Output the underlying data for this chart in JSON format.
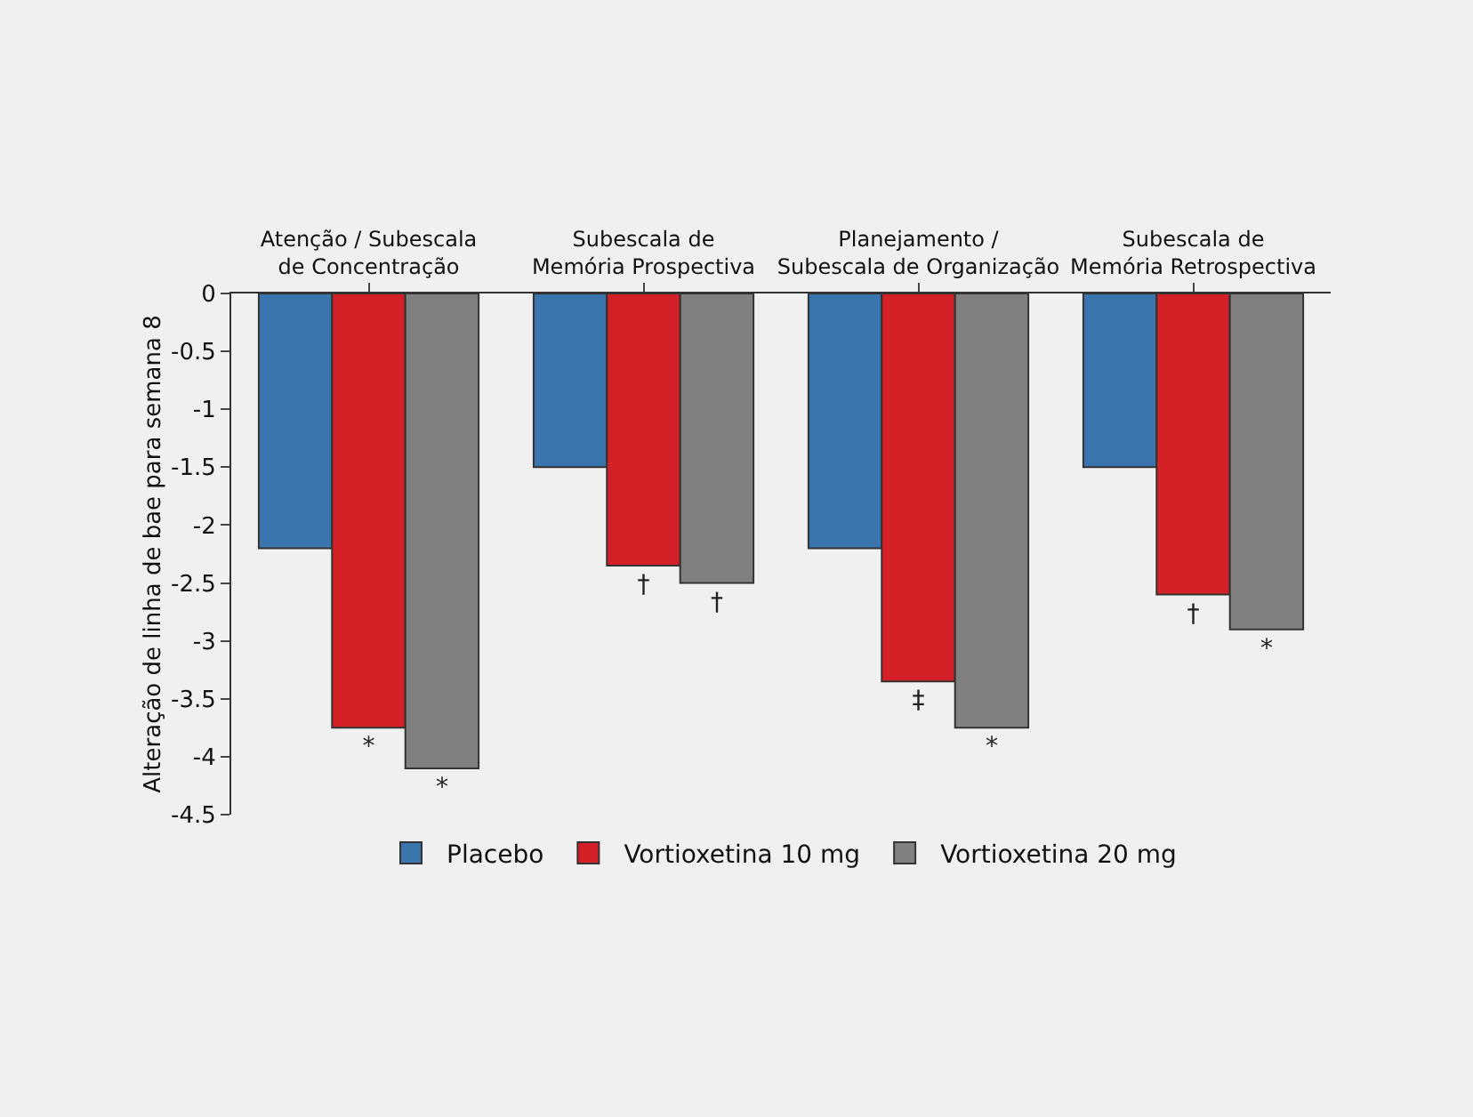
{
  "chart_data": {
    "type": "bar",
    "ylabel": "Alteração de linha de bae para semana 8",
    "categories": [
      "Atenção / Subescala de Concentração",
      "Subescala de Memória Prospectiva",
      "Planejamento / Subescala de Organização",
      "Subescala de Memória Retrospectiva"
    ],
    "series": [
      {
        "name": "Placebo",
        "color": "#3a75ad",
        "values": [
          -2.2,
          -1.5,
          -2.2,
          -1.5
        ]
      },
      {
        "name": "Vortioxetina 10 mg",
        "color": "#d42027",
        "values": [
          -3.75,
          -2.35,
          -3.35,
          -2.6
        ],
        "value_labels": [
          "*",
          "†",
          "‡",
          "†"
        ]
      },
      {
        "name": "Vortioxetina 20 mg",
        "color": "#808080",
        "values": [
          -4.1,
          -2.5,
          -3.75,
          -2.9
        ],
        "value_labels": [
          "*",
          "†",
          "*",
          "*"
        ]
      }
    ],
    "ylim": [
      -4.5,
      0
    ],
    "yticks": [
      0,
      -0.5,
      -1,
      -1.5,
      -2,
      -2.5,
      -3,
      -3.5,
      -4,
      -4.5
    ],
    "grid": false,
    "legend": "bottom"
  }
}
